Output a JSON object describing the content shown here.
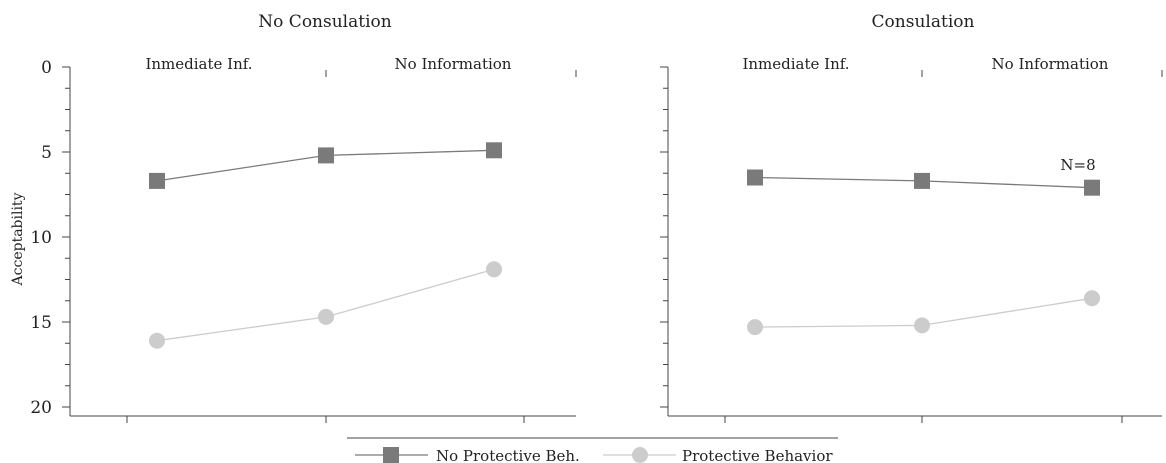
{
  "chart_data": [
    {
      "type": "line",
      "title": "No Consulation",
      "group_labels": [
        "Inmediate Inf.",
        "No Information"
      ],
      "ylabel": "Acceptability",
      "y_ticks": [
        "0",
        "5",
        "10",
        "15",
        "20"
      ],
      "ylim": [
        0,
        20
      ],
      "y_inverted": true,
      "series": [
        {
          "name": "No Protective Beh.",
          "marker": "square",
          "color": "#7a7a7a",
          "x": [
            1,
            2,
            3
          ],
          "values": [
            6.7,
            5.2,
            4.9
          ]
        },
        {
          "name": "Protective Behavior",
          "marker": "circle",
          "color": "#cccccc",
          "x": [
            1,
            2,
            3
          ],
          "values": [
            16.1,
            14.7,
            11.9
          ]
        }
      ],
      "annotation": ""
    },
    {
      "type": "line",
      "title": "Consulation",
      "group_labels": [
        "Inmediate Inf.",
        "No Information"
      ],
      "ylabel": "",
      "y_ticks": [],
      "ylim": [
        0,
        20
      ],
      "y_inverted": true,
      "series": [
        {
          "name": "No Protective Beh.",
          "marker": "square",
          "color": "#7a7a7a",
          "x": [
            1,
            2,
            3
          ],
          "values": [
            6.5,
            6.7,
            7.1
          ]
        },
        {
          "name": "Protective Behavior",
          "marker": "circle",
          "color": "#cccccc",
          "x": [
            1,
            2,
            3
          ],
          "values": [
            15.3,
            15.2,
            13.6
          ]
        }
      ],
      "annotation": "N=8"
    }
  ],
  "legend": {
    "position": "bottom",
    "items": [
      {
        "label": "No Protective Beh.",
        "marker": "square",
        "color": "#7a7a7a"
      },
      {
        "label": "Protective Behavior",
        "marker": "circle",
        "color": "#cccccc"
      }
    ]
  }
}
